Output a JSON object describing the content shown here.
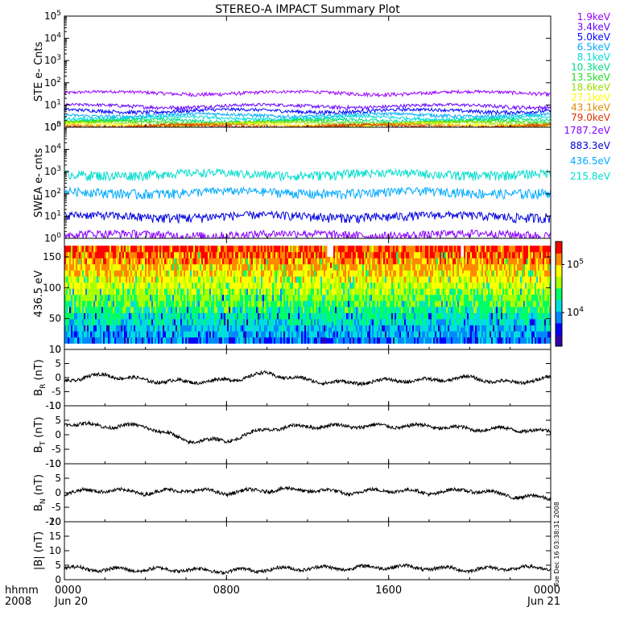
{
  "title": "STEREO-A IMPACT Summary Plot",
  "colors": {
    "axis": "#000000",
    "ste": [
      "#9900ff",
      "#6600ff",
      "#0000ff",
      "#00aaff",
      "#00dddd",
      "#00dd88",
      "#22dd22",
      "#99dd00",
      "#ffff00",
      "#dd8800",
      "#dd3300"
    ],
    "swea": [
      "#8800ff",
      "#0000dd",
      "#00aaff",
      "#00ddcc"
    ],
    "colorbar": [
      "#3300aa",
      "#0000ff",
      "#0088ff",
      "#00dddd",
      "#00ff66",
      "#aaff00",
      "#ffff00",
      "#ff8800",
      "#ff0000"
    ]
  },
  "time_axis": {
    "hhmm_label": "hhmm",
    "year_label": "2008",
    "ticks": [
      {
        "t": 0,
        "label": "0000",
        "date": "Jun 20"
      },
      {
        "t": 8,
        "label": "0800",
        "date": ""
      },
      {
        "t": 16,
        "label": "1600",
        "date": ""
      },
      {
        "t": 24,
        "label": "0000",
        "date": "Jun 21"
      }
    ]
  },
  "timestamp": "Tue Dec 16 03:38:31 2008",
  "chart_data": [
    {
      "type": "line",
      "ylabel": "STE e- Cnts",
      "yscale": "log",
      "ylim": [
        1,
        100000
      ],
      "y_ticks": [
        1,
        10,
        100,
        1000,
        10000,
        100000
      ],
      "x": [
        0,
        24
      ],
      "series": [
        {
          "name": "1.9keV",
          "level": 35
        },
        {
          "name": "3.4keV",
          "level": 9
        },
        {
          "name": "5.0keV",
          "level": 5.5
        },
        {
          "name": "6.5keV",
          "level": 3.5
        },
        {
          "name": "8.1keV",
          "level": 2.6
        },
        {
          "name": "10.3keV",
          "level": 2.0
        },
        {
          "name": "13.5keV",
          "level": 1.7
        },
        {
          "name": "18.6keV",
          "level": 1.5
        },
        {
          "name": "27.1keV",
          "level": 1.3
        },
        {
          "name": "43.1keV",
          "level": 1.2
        },
        {
          "name": "79.0keV",
          "level": 1.1
        }
      ]
    },
    {
      "type": "line",
      "ylabel": "SWEA e- cnts",
      "yscale": "log",
      "ylim": [
        1,
        100000
      ],
      "y_ticks": [
        1,
        10,
        100,
        1000,
        10000,
        100000
      ],
      "x": [
        0,
        24
      ],
      "series": [
        {
          "name": "1787.2eV",
          "level": 1.5
        },
        {
          "name": "883.3eV",
          "level": 10
        },
        {
          "name": "436.5eV",
          "level": 120
        },
        {
          "name": "215.8eV",
          "level": 800
        }
      ]
    },
    {
      "type": "heatmap",
      "ylabel": "436.5 eV",
      "ylim": [
        0,
        180
      ],
      "y_ticks": [
        0,
        50,
        100,
        150
      ],
      "x": [
        0,
        24
      ],
      "colorbar_labels": [
        "10^4",
        "10^5"
      ],
      "colorbar_values": [
        10000,
        100000
      ],
      "colorbar_range": [
        2000,
        300000
      ]
    },
    {
      "type": "line",
      "ylabel": "B_R (nT)",
      "ylim": [
        -10,
        10
      ],
      "y_ticks": [
        -10,
        -5,
        0,
        5,
        10
      ],
      "x": [
        0,
        2,
        4,
        6,
        8,
        10,
        12,
        14,
        16,
        18,
        20,
        22,
        24
      ],
      "values": [
        -1,
        1,
        -1,
        -1.5,
        -1,
        1.5,
        -1,
        -2,
        -1,
        -1,
        0,
        -2,
        0
      ]
    },
    {
      "type": "line",
      "ylabel": "B_T (nT)",
      "ylim": [
        -10,
        10
      ],
      "y_ticks": [
        -10,
        -5,
        0,
        5,
        10
      ],
      "x": [
        0,
        2,
        4,
        6,
        8,
        10,
        12,
        14,
        16,
        18,
        20,
        22,
        24
      ],
      "values": [
        4,
        3,
        3,
        -2,
        -2,
        2,
        3,
        3,
        3,
        3,
        2,
        2,
        1
      ]
    },
    {
      "type": "line",
      "ylabel": "B_N (nT)",
      "ylim": [
        -10,
        10
      ],
      "y_ticks": [
        -10,
        -5,
        0,
        5,
        10
      ],
      "x": [
        0,
        2,
        4,
        6,
        8,
        10,
        12,
        14,
        16,
        18,
        20,
        22,
        24
      ],
      "values": [
        0,
        1,
        0,
        1,
        0,
        1,
        1,
        0,
        1,
        0,
        1,
        -1,
        -2
      ]
    },
    {
      "type": "line",
      "ylabel": "|B| (nT)",
      "ylim": [
        0,
        20
      ],
      "y_ticks": [
        0,
        5,
        10,
        15,
        20
      ],
      "x": [
        0,
        2,
        4,
        6,
        8,
        10,
        12,
        14,
        16,
        18,
        20,
        22,
        24
      ],
      "values": [
        4,
        3.5,
        3.5,
        3.5,
        3,
        3.5,
        4,
        4,
        4.5,
        4,
        3.5,
        4,
        4
      ]
    }
  ]
}
